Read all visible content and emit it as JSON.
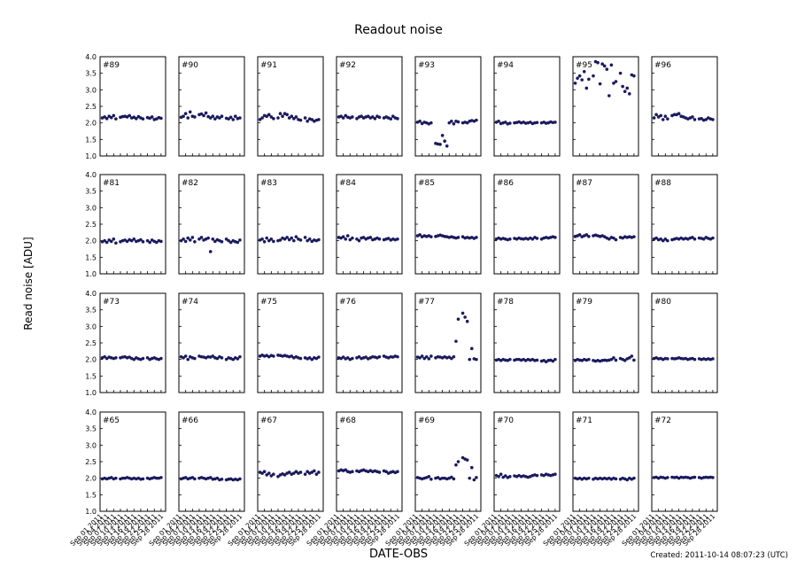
{
  "chart_data": {
    "type": "scatter",
    "title": "Readout noise",
    "xlabel": "DATE-OBS",
    "ylabel": "Read noise [ADU]",
    "annotation": "Created: 2011-10-14 08:07:23 (UTC)",
    "color": "#1a1a5e",
    "x": [
      "Sep 02 2011",
      "Sep 03 2011",
      "Sep 04 2011",
      "Sep 05 2011",
      "Sep 06 2011",
      "Sep 07 2011",
      "Sep 08 2011",
      "Sep 10 2011",
      "Sep 11 2011",
      "Sep 12 2011",
      "Sep 13 2011",
      "Sep 14 2011",
      "Sep 15 2011",
      "Sep 16 2011",
      "Sep 17 2011",
      "Sep 18 2011",
      "Sep 19 2011",
      "Sep 20 2011",
      "Sep 22 2011",
      "Sep 23 2011",
      "Sep 24 2011",
      "Sep 25 2011",
      "Sep 26 2011",
      "Sep 27 2011",
      "Sep 28 2011"
    ],
    "xlim": [
      "Sep 01 2011",
      "Sep 30 2011"
    ],
    "xticks": [
      "Sep 01 2011",
      "Sep 04 2011",
      "Sep 07 2011",
      "Sep 10 2011",
      "Sep 13 2011",
      "Sep 16 2011",
      "Sep 19 2011",
      "Sep 22 2011",
      "Sep 25 2011",
      "Sep 28 2011"
    ],
    "ylim": [
      1,
      4
    ],
    "yticks": [
      {
        "value": 1,
        "label": "1.0"
      },
      {
        "value": 1.5,
        "label": "1.5"
      },
      {
        "value": 2,
        "label": "2.0"
      },
      {
        "value": 2.5,
        "label": "2.5"
      },
      {
        "value": 3,
        "label": "3.0"
      },
      {
        "value": 3.5,
        "label": "3.5"
      },
      {
        "value": 4,
        "label": "4.0"
      }
    ],
    "panels": [
      {
        "title": "#89",
        "values": [
          2.15,
          2.18,
          2.13,
          2.2,
          2.16,
          2.22,
          2.12,
          2.17,
          2.19,
          2.2,
          2.18,
          2.22,
          2.15,
          2.17,
          2.13,
          2.19,
          2.15,
          2.12,
          2.16,
          2.14,
          2.18,
          2.1,
          2.12,
          2.16,
          2.14
        ]
      },
      {
        "title": "#90",
        "values": [
          2.17,
          2.2,
          2.28,
          2.15,
          2.33,
          2.2,
          2.18,
          2.25,
          2.27,
          2.22,
          2.3,
          2.19,
          2.15,
          2.2,
          2.12,
          2.18,
          2.15,
          2.2,
          2.14,
          2.12,
          2.17,
          2.1,
          2.2,
          2.13,
          2.15
        ]
      },
      {
        "title": "#91",
        "values": [
          2.1,
          2.15,
          2.22,
          2.2,
          2.25,
          2.18,
          2.13,
          2.15,
          2.28,
          2.2,
          2.28,
          2.25,
          2.15,
          2.2,
          2.13,
          2.18,
          2.1,
          2.08,
          2.15,
          2.05,
          2.12,
          2.1,
          2.05,
          2.08,
          2.1
        ]
      },
      {
        "title": "#92",
        "values": [
          2.18,
          2.2,
          2.15,
          2.22,
          2.17,
          2.15,
          2.18,
          2.13,
          2.18,
          2.2,
          2.15,
          2.18,
          2.2,
          2.15,
          2.18,
          2.13,
          2.2,
          2.17,
          2.15,
          2.18,
          2.15,
          2.12,
          2.2,
          2.15,
          2.13
        ]
      },
      {
        "title": "#93",
        "values": [
          2.02,
          2.05,
          1.98,
          2.02,
          2.0,
          1.97,
          2.0,
          1.38,
          1.36,
          1.35,
          1.62,
          1.45,
          1.3,
          2.0,
          2.05,
          1.97,
          2.05,
          2.03,
          2.0,
          2.02,
          2.0,
          2.05,
          2.07,
          2.05,
          2.08
        ]
      },
      {
        "title": "#94",
        "values": [
          2.02,
          2.05,
          1.98,
          2.0,
          2.02,
          1.97,
          1.99,
          2.0,
          2.01,
          2.03,
          2.0,
          2.02,
          1.99,
          2.0,
          2.02,
          1.98,
          2.0,
          2.01,
          2.0,
          2.02,
          1.99,
          2.0,
          2.03,
          2.01,
          2.02
        ]
      },
      {
        "title": "#95",
        "values": [
          3.2,
          3.35,
          3.42,
          3.3,
          3.55,
          3.05,
          3.32,
          3.42,
          3.85,
          3.82,
          3.18,
          3.78,
          3.72,
          3.62,
          2.82,
          3.75,
          3.2,
          3.25,
          3.5,
          3.1,
          2.95,
          3.05,
          2.88,
          3.45,
          3.42
        ]
      },
      {
        "title": "#96",
        "values": [
          2.15,
          2.25,
          2.18,
          2.22,
          2.1,
          2.2,
          2.12,
          2.22,
          2.25,
          2.25,
          2.28,
          2.2,
          2.18,
          2.15,
          2.12,
          2.15,
          2.18,
          2.1,
          2.12,
          2.13,
          2.08,
          2.1,
          2.15,
          2.12,
          2.1
        ]
      },
      {
        "title": "#81",
        "values": [
          1.97,
          2.0,
          1.95,
          2.02,
          1.98,
          2.05,
          1.93,
          1.97,
          2.0,
          2.02,
          1.98,
          2.03,
          2.0,
          2.05,
          1.98,
          2.0,
          2.03,
          1.97,
          2.0,
          1.95,
          2.02,
          1.98,
          1.95,
          2.0,
          1.98
        ]
      },
      {
        "title": "#82",
        "values": [
          2.0,
          2.05,
          1.98,
          2.08,
          2.02,
          2.1,
          1.97,
          2.05,
          2.1,
          2.02,
          2.05,
          2.08,
          1.67,
          2.05,
          1.98,
          2.03,
          2.0,
          1.97,
          2.05,
          2.0,
          1.95,
          2.0,
          1.97,
          1.95,
          2.02
        ]
      },
      {
        "title": "#83",
        "values": [
          2.02,
          2.05,
          1.97,
          2.08,
          2.0,
          2.05,
          1.98,
          2.0,
          2.02,
          2.08,
          2.05,
          2.1,
          2.03,
          2.08,
          2.0,
          2.12,
          2.05,
          2.02,
          2.1,
          2.0,
          2.05,
          1.98,
          2.02,
          2.0,
          2.03
        ]
      },
      {
        "title": "#84",
        "values": [
          2.1,
          2.08,
          2.12,
          2.05,
          2.15,
          2.03,
          2.08,
          2.05,
          2.0,
          2.08,
          2.1,
          2.05,
          2.08,
          2.1,
          2.03,
          2.05,
          2.08,
          2.05,
          2.03,
          2.05,
          2.07,
          2.02,
          2.05,
          2.03,
          2.05
        ]
      },
      {
        "title": "#85",
        "values": [
          2.15,
          2.18,
          2.12,
          2.15,
          2.13,
          2.15,
          2.12,
          2.13,
          2.15,
          2.17,
          2.15,
          2.13,
          2.12,
          2.1,
          2.12,
          2.1,
          2.08,
          2.1,
          2.12,
          2.08,
          2.1,
          2.08,
          2.1,
          2.07,
          2.1
        ]
      },
      {
        "title": "#86",
        "values": [
          2.05,
          2.08,
          2.05,
          2.07,
          2.05,
          2.03,
          2.05,
          2.07,
          2.05,
          2.08,
          2.06,
          2.05,
          2.07,
          2.05,
          2.08,
          2.05,
          2.1,
          2.07,
          2.05,
          2.08,
          2.1,
          2.08,
          2.1,
          2.12,
          2.1
        ]
      },
      {
        "title": "#87",
        "values": [
          2.13,
          2.15,
          2.18,
          2.12,
          2.15,
          2.18,
          2.13,
          2.15,
          2.17,
          2.15,
          2.13,
          2.15,
          2.12,
          2.08,
          2.05,
          2.1,
          2.08,
          2.03,
          2.1,
          2.08,
          2.12,
          2.1,
          2.12,
          2.1,
          2.12
        ]
      },
      {
        "title": "#88",
        "values": [
          2.05,
          2.08,
          2.03,
          2.05,
          2.0,
          2.05,
          2.0,
          2.03,
          2.05,
          2.07,
          2.05,
          2.08,
          2.05,
          2.07,
          2.05,
          2.08,
          2.1,
          2.05,
          2.08,
          2.07,
          2.05,
          2.1,
          2.07,
          2.05,
          2.08
        ]
      },
      {
        "title": "#73",
        "values": [
          2.05,
          2.08,
          2.03,
          2.07,
          2.05,
          2.03,
          2.05,
          2.05,
          2.07,
          2.08,
          2.05,
          2.07,
          2.03,
          2.0,
          2.05,
          2.02,
          2.0,
          2.03,
          2.05,
          2.0,
          2.03,
          2.05,
          2.02,
          2.0,
          2.03
        ]
      },
      {
        "title": "#74",
        "values": [
          2.08,
          2.05,
          2.1,
          2.0,
          2.08,
          2.05,
          2.03,
          2.1,
          2.08,
          2.07,
          2.05,
          2.08,
          2.07,
          2.1,
          2.05,
          2.03,
          2.08,
          2.05,
          2.0,
          2.05,
          2.03,
          2.0,
          2.05,
          2.02,
          2.08
        ]
      },
      {
        "title": "#75",
        "values": [
          2.1,
          2.13,
          2.1,
          2.12,
          2.08,
          2.12,
          2.1,
          2.13,
          2.12,
          2.1,
          2.12,
          2.1,
          2.08,
          2.1,
          2.05,
          2.08,
          2.05,
          2.03,
          2.05,
          2.02,
          2.05,
          2.0,
          2.05,
          2.03,
          2.07
        ]
      },
      {
        "title": "#76",
        "values": [
          2.05,
          2.03,
          2.07,
          2.02,
          2.05,
          2.0,
          2.03,
          2.05,
          2.08,
          2.03,
          2.05,
          2.07,
          2.02,
          2.05,
          2.08,
          2.07,
          2.05,
          2.08,
          2.1,
          2.07,
          2.05,
          2.08,
          2.07,
          2.1,
          2.08
        ]
      },
      {
        "title": "#77",
        "values": [
          2.07,
          2.05,
          2.1,
          2.03,
          2.08,
          2.02,
          2.1,
          2.05,
          2.08,
          2.07,
          2.05,
          2.08,
          2.05,
          2.07,
          2.03,
          2.08,
          2.55,
          3.22,
          3.4,
          3.28,
          3.15,
          2.0,
          2.33,
          2.02,
          2.0
        ]
      },
      {
        "title": "#78",
        "values": [
          1.98,
          2.0,
          1.97,
          2.0,
          1.98,
          1.97,
          2.0,
          1.98,
          2.0,
          2.0,
          1.98,
          2.0,
          1.97,
          2.0,
          1.98,
          2.0,
          1.97,
          1.98,
          1.95,
          1.97,
          1.93,
          1.97,
          1.98,
          1.95,
          2.0
        ]
      },
      {
        "title": "#79",
        "values": [
          1.97,
          2.0,
          1.98,
          1.97,
          2.0,
          1.98,
          2.0,
          1.97,
          1.95,
          1.97,
          1.95,
          1.97,
          1.98,
          1.97,
          1.98,
          2.0,
          2.05,
          1.98,
          2.03,
          2.0,
          1.97,
          2.02,
          2.05,
          2.1,
          1.98
        ]
      },
      {
        "title": "#80",
        "values": [
          2.03,
          2.05,
          2.02,
          2.03,
          2.0,
          2.03,
          2.02,
          2.03,
          2.02,
          2.03,
          2.05,
          2.03,
          2.02,
          2.03,
          2.0,
          2.02,
          2.03,
          2.0,
          2.02,
          2.0,
          2.02,
          2.0,
          2.02,
          2.0,
          2.02
        ]
      },
      {
        "title": "#65",
        "values": [
          1.98,
          2.0,
          1.98,
          2.0,
          2.02,
          1.98,
          2.0,
          1.98,
          2.0,
          2.0,
          2.02,
          2.0,
          1.98,
          2.0,
          1.98,
          2.0,
          1.97,
          1.98,
          2.0,
          1.98,
          2.0,
          2.02,
          2.0,
          2.0,
          2.02
        ]
      },
      {
        "title": "#66",
        "values": [
          1.98,
          2.0,
          2.02,
          1.98,
          2.0,
          2.02,
          1.98,
          2.0,
          2.02,
          2.0,
          1.98,
          2.0,
          2.02,
          1.97,
          1.98,
          2.0,
          1.95,
          1.97,
          1.95,
          1.97,
          1.98,
          1.95,
          1.97,
          1.95,
          1.98
        ]
      },
      {
        "title": "#67",
        "values": [
          2.18,
          2.15,
          2.2,
          2.1,
          2.15,
          2.07,
          2.12,
          2.05,
          2.1,
          2.13,
          2.1,
          2.15,
          2.18,
          2.12,
          2.15,
          2.2,
          2.15,
          2.18,
          2.12,
          2.2,
          2.15,
          2.18,
          2.22,
          2.12,
          2.18
        ]
      },
      {
        "title": "#68",
        "values": [
          2.22,
          2.25,
          2.23,
          2.25,
          2.2,
          2.18,
          2.2,
          2.22,
          2.2,
          2.23,
          2.25,
          2.22,
          2.2,
          2.23,
          2.2,
          2.22,
          2.2,
          2.18,
          2.22,
          2.2,
          2.15,
          2.18,
          2.2,
          2.17,
          2.2
        ]
      },
      {
        "title": "#69",
        "values": [
          2.02,
          2.0,
          1.98,
          2.0,
          2.02,
          2.05,
          1.97,
          2.0,
          2.02,
          1.98,
          2.0,
          2.0,
          1.98,
          2.0,
          2.03,
          1.98,
          2.4,
          2.5,
          2.62,
          2.58,
          2.55,
          2.0,
          2.32,
          1.95,
          2.02
        ]
      },
      {
        "title": "#70",
        "values": [
          2.08,
          2.05,
          2.12,
          2.03,
          2.07,
          2.02,
          2.05,
          2.07,
          2.05,
          2.08,
          2.05,
          2.07,
          2.05,
          2.03,
          2.05,
          2.08,
          2.1,
          2.08,
          2.1,
          2.08,
          2.12,
          2.1,
          2.08,
          2.1,
          2.12
        ]
      },
      {
        "title": "#71",
        "values": [
          2.0,
          1.98,
          2.0,
          1.97,
          2.0,
          1.98,
          2.0,
          1.97,
          2.0,
          1.98,
          2.0,
          1.98,
          2.0,
          1.98,
          2.0,
          1.97,
          2.0,
          1.98,
          1.97,
          2.0,
          1.98,
          1.95,
          2.0,
          1.97,
          2.0
        ]
      },
      {
        "title": "#72",
        "values": [
          2.02,
          2.03,
          2.0,
          2.03,
          2.02,
          2.0,
          2.02,
          2.03,
          2.02,
          2.03,
          2.0,
          2.03,
          2.02,
          2.03,
          2.02,
          2.0,
          2.02,
          2.03,
          2.02,
          2.0,
          2.02,
          2.03,
          2.02,
          2.03,
          2.02
        ]
      }
    ]
  }
}
